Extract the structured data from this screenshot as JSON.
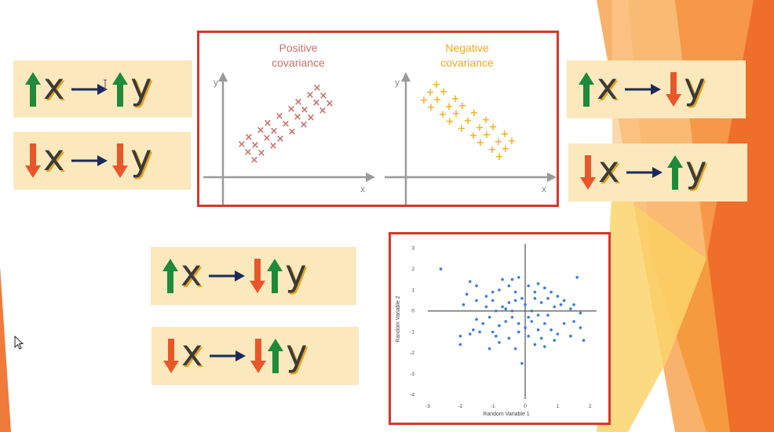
{
  "relations": {
    "up_up": {
      "x_arrow": "up",
      "y_arrows": [
        "up"
      ],
      "x": "x",
      "y": "y"
    },
    "down_down": {
      "x_arrow": "down",
      "y_arrows": [
        "down"
      ],
      "x": "x",
      "y": "y"
    },
    "up_down": {
      "x_arrow": "up",
      "y_arrows": [
        "down"
      ],
      "x": "x",
      "y": "y"
    },
    "down_up": {
      "x_arrow": "down",
      "y_arrows": [
        "up"
      ],
      "x": "x",
      "y": "y"
    },
    "up_downup": {
      "x_arrow": "up",
      "y_arrows": [
        "down",
        "up"
      ],
      "x": "x",
      "y": "y"
    },
    "down_downup": {
      "x_arrow": "down",
      "y_arrows": [
        "down",
        "up"
      ],
      "x": "x",
      "y": "y"
    }
  },
  "covariance_panel": {
    "positive": {
      "title_line1": "Positive",
      "title_line2": "covariance",
      "x_axis": "x",
      "y_axis": "y",
      "marker": "×"
    },
    "negative": {
      "title_line1": "Negative",
      "title_line2": "covariance",
      "x_axis": "x",
      "y_axis": "y",
      "marker": "+"
    }
  },
  "colors": {
    "up_arrow": "#1e8a3a",
    "down_arrow": "#e8572a",
    "implies_arrow": "#1b2a5c",
    "card_bg": "#fce8bd",
    "frame": "#d9362b",
    "positive": "#c9706a",
    "negative": "#f0b429",
    "scatter_points": "#3b7dd8"
  },
  "chart_data": {
    "type": "scatter",
    "title": "",
    "xlabel": "Random Variable 1",
    "ylabel": "Random Variable 2",
    "xlim": [
      -3,
      2.2
    ],
    "ylim": [
      -4.2,
      3.2
    ],
    "xticks": [
      "-3",
      "-2",
      "-1",
      "0",
      "1",
      "2"
    ],
    "yticks": [
      "3",
      "2",
      "1",
      "0",
      "-1",
      "-2",
      "-3",
      "-4"
    ],
    "grid": false,
    "points": [
      [
        -2.6,
        2.0
      ],
      [
        -1.7,
        1.4
      ],
      [
        -1.5,
        1.2
      ],
      [
        -1.8,
        0.8
      ],
      [
        -1.5,
        0.5
      ],
      [
        -1.9,
        0.3
      ],
      [
        -1.2,
        0.7
      ],
      [
        -1.0,
        0.9
      ],
      [
        -0.7,
        1.5
      ],
      [
        -0.5,
        1.2
      ],
      [
        -0.4,
        1.5
      ],
      [
        -0.2,
        1.6
      ],
      [
        0.1,
        1.2
      ],
      [
        0.4,
        1.3
      ],
      [
        0.6,
        1.1
      ],
      [
        0.8,
        0.9
      ],
      [
        1.0,
        0.7
      ],
      [
        1.6,
        1.6
      ],
      [
        1.5,
        0.3
      ],
      [
        1.4,
        0.1
      ],
      [
        1.7,
        -0.1
      ],
      [
        1.1,
        0.3
      ],
      [
        0.9,
        0.2
      ],
      [
        0.7,
        -0.2
      ],
      [
        0.5,
        0.4
      ],
      [
        0.3,
        0.6
      ],
      [
        0.2,
        0.0
      ],
      [
        0.0,
        0.3
      ],
      [
        -0.1,
        0.6
      ],
      [
        -0.3,
        0.9
      ],
      [
        -0.5,
        0.4
      ],
      [
        -0.7,
        0.2
      ],
      [
        -0.9,
        0.0
      ],
      [
        -1.1,
        -0.3
      ],
      [
        -1.3,
        -0.6
      ],
      [
        -1.6,
        -0.9
      ],
      [
        -2.0,
        -1.2
      ],
      [
        -2.0,
        -1.6
      ],
      [
        -1.7,
        -1.1
      ],
      [
        -1.4,
        -1.0
      ],
      [
        -1.0,
        -1.0
      ],
      [
        -0.8,
        -0.7
      ],
      [
        -0.6,
        -0.5
      ],
      [
        -0.4,
        -0.3
      ],
      [
        -0.2,
        -0.6
      ],
      [
        0.0,
        -0.8
      ],
      [
        0.2,
        -0.5
      ],
      [
        0.4,
        -0.2
      ],
      [
        0.6,
        -0.6
      ],
      [
        0.8,
        -0.9
      ],
      [
        1.0,
        -1.1
      ],
      [
        1.2,
        -0.6
      ],
      [
        1.4,
        -1.2
      ],
      [
        1.8,
        -1.4
      ],
      [
        1.7,
        -0.8
      ],
      [
        0.5,
        -1.3
      ],
      [
        0.3,
        -1.6
      ],
      [
        0.1,
        -1.2
      ],
      [
        -0.2,
        -1.0
      ],
      [
        -0.5,
        -1.3
      ],
      [
        -0.8,
        -1.5
      ],
      [
        -1.1,
        -1.8
      ],
      [
        -0.9,
        -1.2
      ],
      [
        -0.3,
        -1.8
      ],
      [
        0.6,
        -1.7
      ],
      [
        0.9,
        -1.4
      ],
      [
        -0.1,
        -2.5
      ],
      [
        -0.6,
        0.1
      ],
      [
        0.1,
        -0.3
      ],
      [
        1.2,
        0.5
      ],
      [
        -1.2,
        0.2
      ],
      [
        -0.4,
        0.0
      ],
      [
        0.3,
        0.9
      ],
      [
        -0.8,
        1.0
      ],
      [
        0.7,
        0.6
      ],
      [
        -1.5,
        -0.4
      ],
      [
        1.5,
        -0.5
      ],
      [
        -0.3,
        0.5
      ],
      [
        0.4,
        -0.9
      ],
      [
        -1.0,
        0.5
      ]
    ]
  }
}
